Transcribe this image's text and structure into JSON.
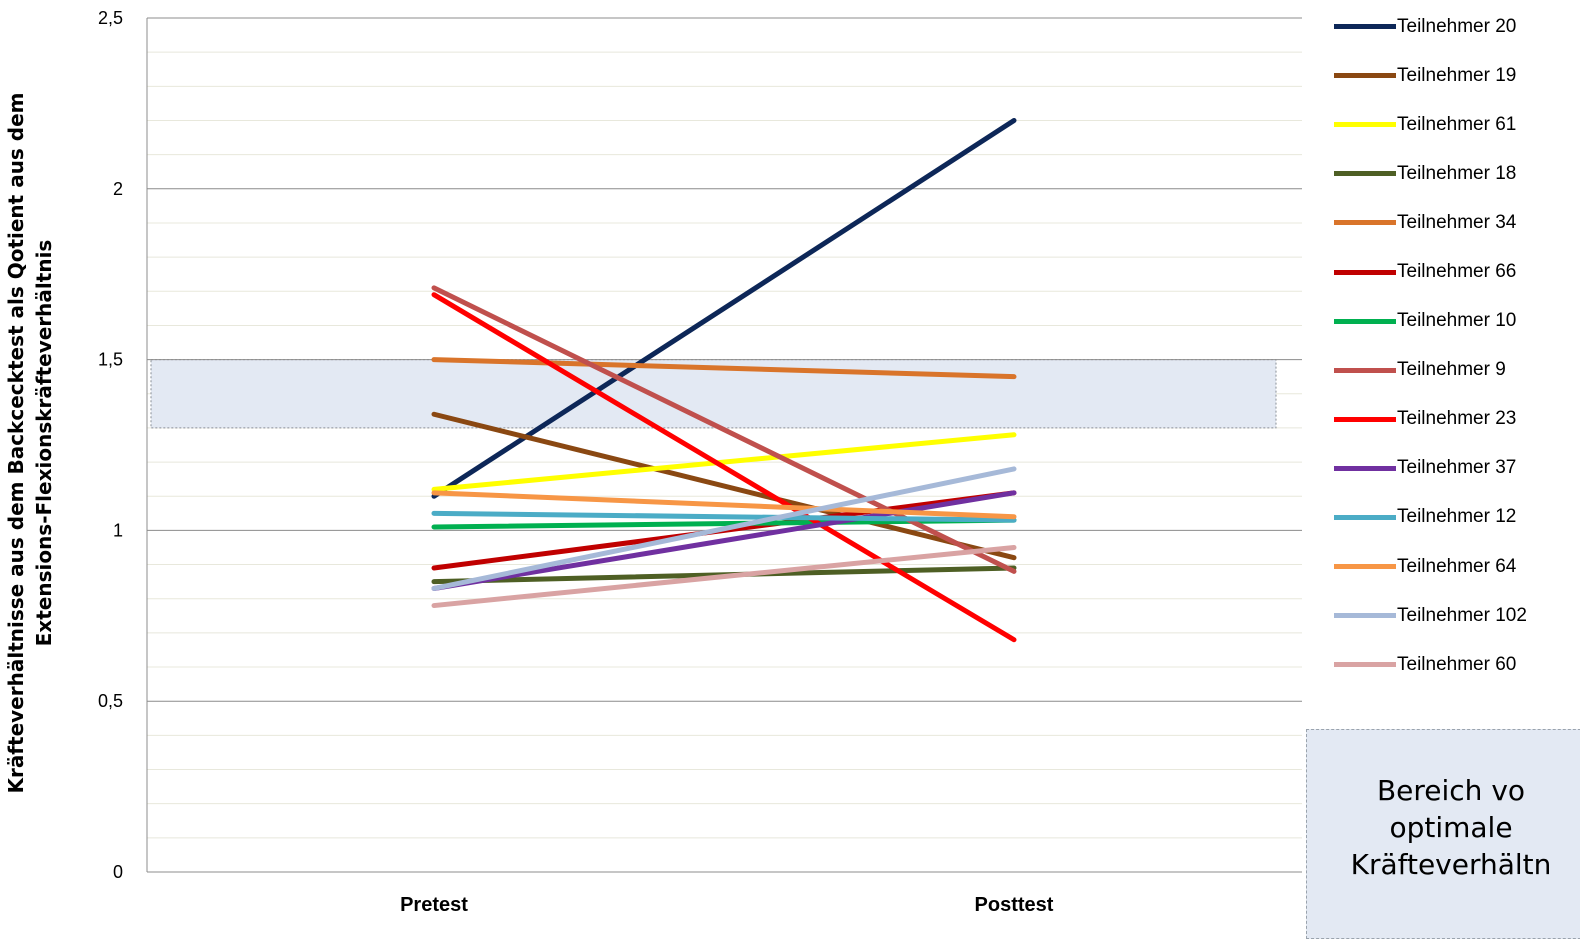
{
  "chart_data": {
    "type": "line",
    "categories": [
      "Pretest",
      "Posttest"
    ],
    "ylabel_lines": [
      "Kräfteverhältnisse aus dem Backcecktest als Qotient aus dem",
      "Extensions-Flexionskräfteverhältnis"
    ],
    "ylim": [
      0,
      2.5
    ],
    "yticks": [
      0,
      0.5,
      1,
      1.5,
      2,
      2.5
    ],
    "ytick_labels": [
      "0",
      "0,5",
      "1",
      "1,5",
      "2",
      "2,5"
    ],
    "minor_grid_step": 0.1,
    "grid": true,
    "legend_position": "right",
    "optimal_band": [
      1.3,
      1.5
    ],
    "optimal_band_label_lines": [
      "Bereich vo",
      "optimale",
      "Kräfteverhältn"
    ],
    "series": [
      {
        "name": "Teilnehmer 20",
        "color": "#0d2758",
        "values": [
          1.1,
          2.2
        ]
      },
      {
        "name": "Teilnehmer 19",
        "color": "#8a4812",
        "values": [
          1.34,
          0.92
        ]
      },
      {
        "name": "Teilnehmer 61",
        "color": "#ffff00",
        "values": [
          1.12,
          1.28
        ]
      },
      {
        "name": "Teilnehmer 18",
        "color": "#4e5f24",
        "values": [
          0.85,
          0.89
        ]
      },
      {
        "name": "Teilnehmer 34",
        "color": "#d9742a",
        "values": [
          1.5,
          1.45
        ]
      },
      {
        "name": "Teilnehmer 66",
        "color": "#c00000",
        "values": [
          0.89,
          1.11
        ]
      },
      {
        "name": "Teilnehmer 10",
        "color": "#00b050",
        "values": [
          1.01,
          1.03
        ]
      },
      {
        "name": "Teilnehmer 9",
        "color": "#c0504d",
        "values": [
          1.71,
          0.88
        ]
      },
      {
        "name": "Teilnehmer 23",
        "color": "#ff0000",
        "values": [
          1.69,
          0.68
        ]
      },
      {
        "name": "Teilnehmer 37",
        "color": "#7030a0",
        "values": [
          0.83,
          1.11
        ]
      },
      {
        "name": "Teilnehmer 12",
        "color": "#4bacc6",
        "values": [
          1.05,
          1.03
        ]
      },
      {
        "name": "Teilnehmer 64",
        "color": "#f79646",
        "values": [
          1.11,
          1.04
        ]
      },
      {
        "name": "Teilnehmer 102",
        "color": "#a6b9d8",
        "values": [
          0.83,
          1.18
        ]
      },
      {
        "name": "Teilnehmer 60",
        "color": "#d9a3a3",
        "values": [
          0.78,
          0.95
        ]
      }
    ]
  }
}
